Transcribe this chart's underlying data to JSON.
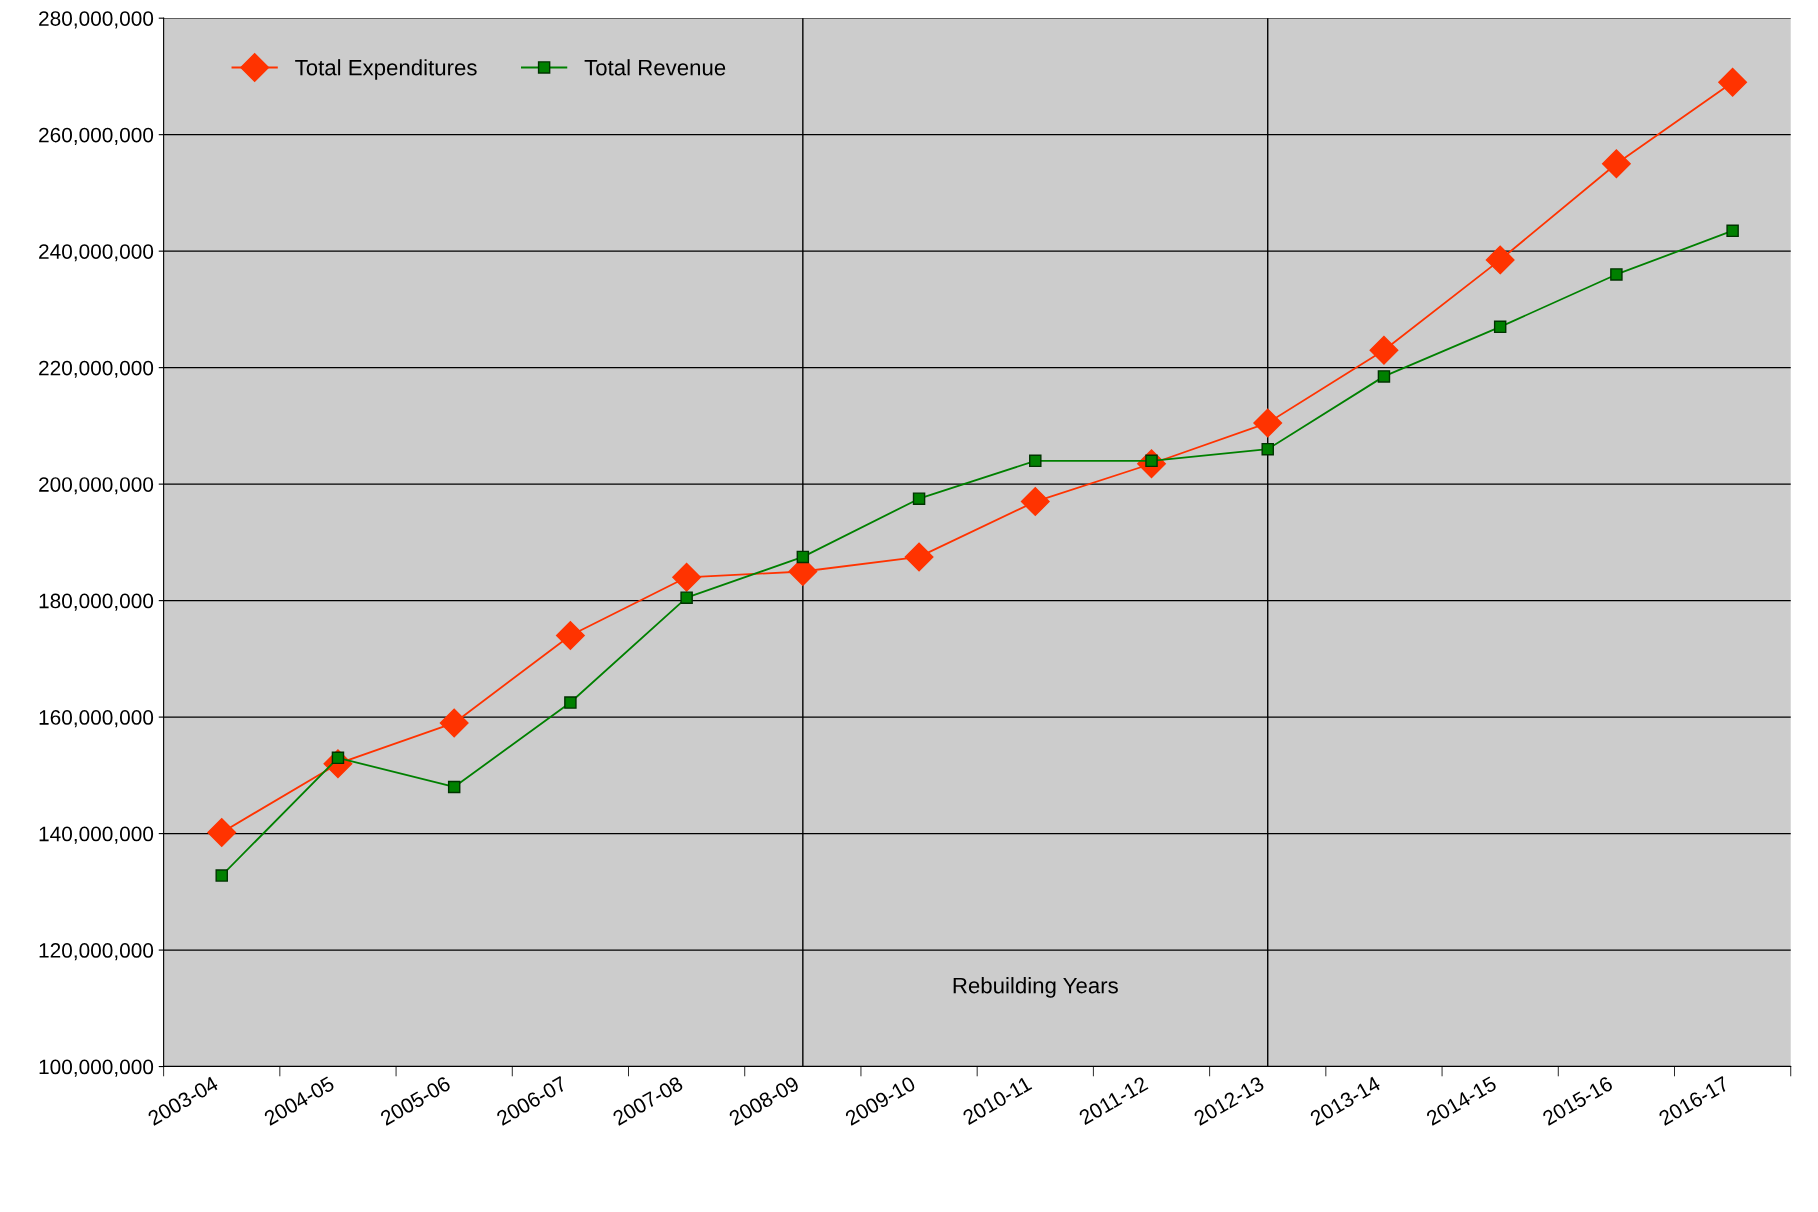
{
  "chart_data": {
    "type": "line",
    "categories": [
      "2003-04",
      "2004-05",
      "2005-06",
      "2006-07",
      "2007-08",
      "2008-09",
      "2009-10",
      "2010-11",
      "2011-12",
      "2012-13",
      "2013-14",
      "2014-15",
      "2015-16",
      "2016-17"
    ],
    "series": [
      {
        "name": "Total Expenditures",
        "color": "#ff3300",
        "marker": "diamond",
        "values": [
          140200000,
          152000000,
          159000000,
          174000000,
          184000000,
          185000000,
          187500000,
          197000000,
          203500000,
          210500000,
          223000000,
          238500000,
          255000000,
          269000000
        ]
      },
      {
        "name": "Total Revenue",
        "color": "#008000",
        "marker": "square",
        "values": [
          132800000,
          153000000,
          148000000,
          162500000,
          180500000,
          187500000,
          197500000,
          204000000,
          204000000,
          206000000,
          218500000,
          227000000,
          236000000,
          243500000
        ]
      }
    ],
    "ylim": [
      100000000,
      280000000
    ],
    "yticks": [
      {
        "value": 100000000,
        "label": "100,000,000"
      },
      {
        "value": 120000000,
        "label": "120,000,000"
      },
      {
        "value": 140000000,
        "label": "140,000,000"
      },
      {
        "value": 160000000,
        "label": "160,000,000"
      },
      {
        "value": 180000000,
        "label": "180,000,000"
      },
      {
        "value": 200000000,
        "label": "200,000,000"
      },
      {
        "value": 220000000,
        "label": "220,000,000"
      },
      {
        "value": 240000000,
        "label": "240,000,000"
      },
      {
        "value": 260000000,
        "label": "260,000,000"
      },
      {
        "value": 280000000,
        "label": "280,000,000"
      }
    ],
    "ref_lines": [
      {
        "axis": "x",
        "value": "2008-09",
        "color": "#000000"
      },
      {
        "axis": "x",
        "value": "2012-13",
        "color": "#000000"
      }
    ],
    "annotations": [
      "Rebuilding Years"
    ],
    "grid": "y",
    "legend": "top left"
  }
}
